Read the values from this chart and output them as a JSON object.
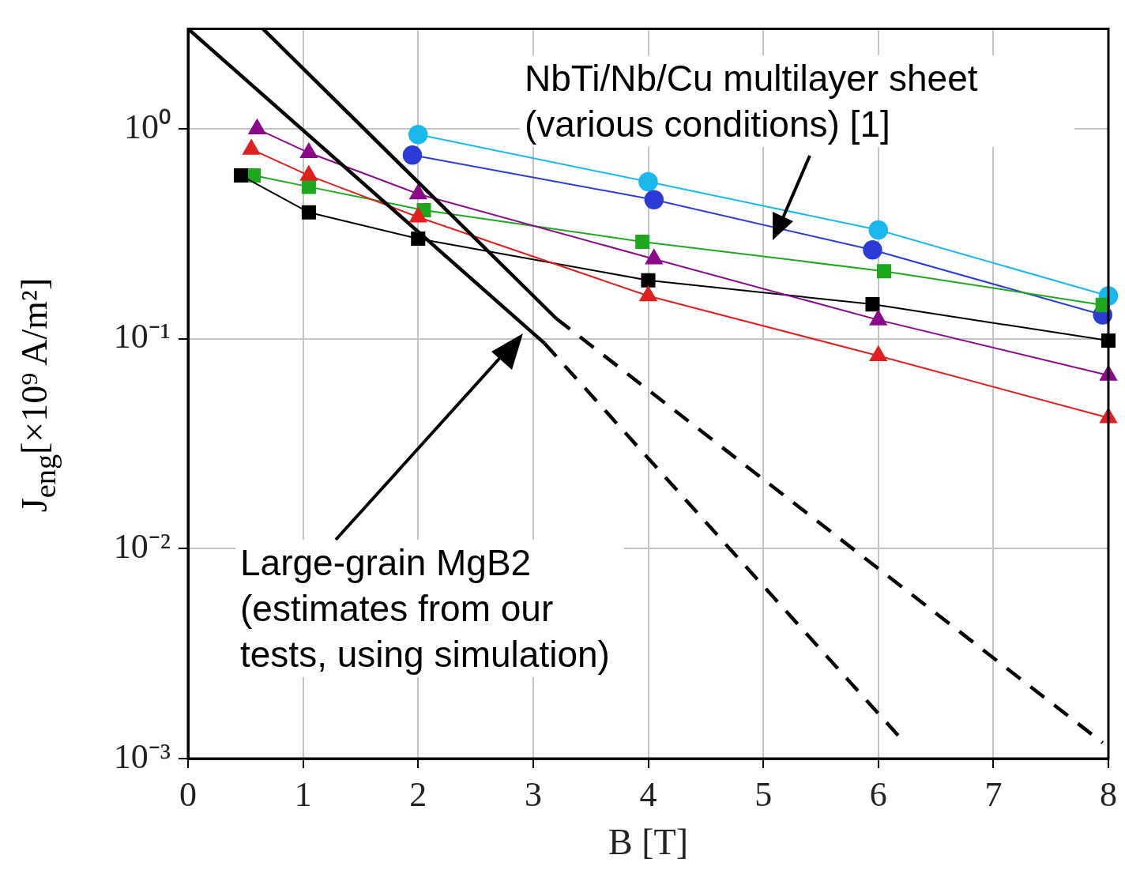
{
  "chart_data": {
    "type": "line",
    "xlabel": "B [T]",
    "ylabel": "J$_{eng}$[×10⁹ A/m²]",
    "log": "y",
    "grid": true,
    "xlim": [
      0,
      8
    ],
    "xticks": [
      0,
      1,
      2,
      3,
      4,
      5,
      6,
      7,
      8
    ],
    "ylim": [
      0.001,
      3
    ],
    "yticks": [
      {
        "value": 0.001,
        "label": "10⁻³"
      },
      {
        "value": 0.01,
        "label": "10⁻²"
      },
      {
        "value": 0.1,
        "label": "10⁻¹"
      },
      {
        "value": 1,
        "label": "10⁰"
      }
    ],
    "series": [
      {
        "color": "#1ab8ec",
        "marker": "circle",
        "x": [
          2,
          4,
          6,
          8
        ],
        "values": [
          0.94,
          0.56,
          0.33,
          0.16
        ]
      },
      {
        "color": "#2a3bd6",
        "marker": "circle",
        "x": [
          1.95,
          4.05,
          5.95,
          7.95
        ],
        "values": [
          0.75,
          0.46,
          0.265,
          0.13
        ]
      },
      {
        "color": "#1ea81e",
        "marker": "square",
        "x": [
          0.57,
          1.05,
          2.05,
          3.95,
          6.05,
          7.95
        ],
        "values": [
          0.6,
          0.53,
          0.41,
          0.29,
          0.21,
          0.145
        ]
      },
      {
        "color": "#000000",
        "marker": "square",
        "x": [
          0.46,
          1.05,
          2.0,
          4.0,
          5.95,
          8.0
        ],
        "values": [
          0.6,
          0.4,
          0.3,
          0.19,
          0.146,
          0.098
        ]
      },
      {
        "color": "#e02020",
        "marker": "triangle",
        "x": [
          0.55,
          1.05,
          2.0,
          4.0,
          6.0,
          8.0
        ],
        "values": [
          0.8,
          0.6,
          0.38,
          0.16,
          0.083,
          0.042
        ]
      },
      {
        "color": "#8a0a8a",
        "marker": "triangle",
        "x": [
          0.6,
          1.05,
          2.0,
          4.05,
          6.0,
          8.0
        ],
        "values": [
          1.0,
          0.77,
          0.49,
          0.24,
          0.123,
          0.067
        ]
      },
      {
        "color": "#000000",
        "marker": "none",
        "line_style": "solid",
        "x": [
          0,
          3.1
        ],
        "values": [
          3.0,
          0.095
        ]
      },
      {
        "color": "#000000",
        "marker": "none",
        "line_style": "dashed",
        "x": [
          3.1,
          6.2
        ],
        "values": [
          0.095,
          0.00124
        ]
      },
      {
        "color": "#000000",
        "marker": "none",
        "line_style": "solid",
        "x": [
          0.65,
          3.2
        ],
        "values": [
          3.0,
          0.125
        ]
      },
      {
        "color": "#000000",
        "marker": "none",
        "line_style": "dashed",
        "x": [
          3.2,
          7.95
        ],
        "values": [
          0.125,
          0.00119
        ]
      }
    ],
    "annotations": [
      "NbTi/Nb/Cu multilayer sheet (various conditions) [1]",
      "Large-grain MgB2 (estimates from our tests, using simulation)"
    ]
  }
}
